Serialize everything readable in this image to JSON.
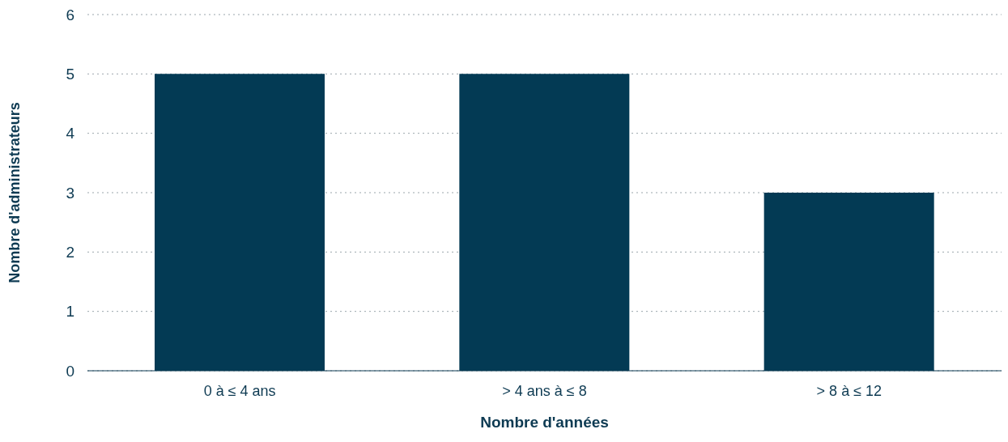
{
  "chart_data": {
    "type": "bar",
    "categories": [
      "0 à ≤ 4 ans",
      "> 4 ans à ≤ 8",
      "> 8 à ≤ 12"
    ],
    "values": [
      5,
      5,
      3
    ],
    "color": "#033a54",
    "xlabel": "Nombre d'années",
    "ylabel": "Nombre d'administrateurs",
    "ylim": [
      0,
      6
    ],
    "yticks": [
      0,
      1,
      2,
      3,
      4,
      5,
      6
    ],
    "grid": "y"
  }
}
